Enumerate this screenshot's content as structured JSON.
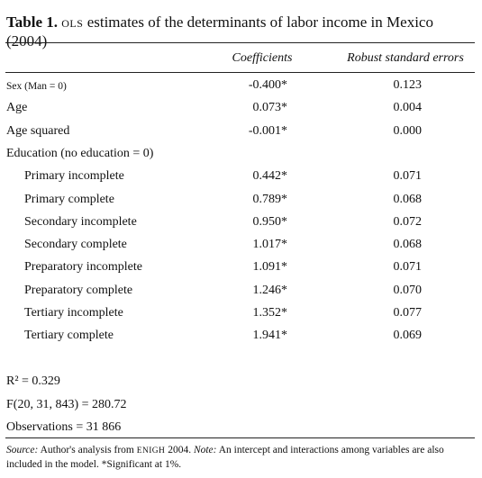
{
  "table": {
    "title": {
      "label": "Table 1.",
      "abbr": "OLS",
      "text": " estimates of the determinants of labor income in Mexico (2004)"
    },
    "header": [
      "Coefficients",
      "Robust standard errors"
    ],
    "rows": [
      {
        "label": "Sex (Man = 0)",
        "coef": "-0.400*",
        "se": "0.123"
      },
      {
        "label": "Age",
        "coef": "0.073*",
        "se": "0.004"
      },
      {
        "label": "Age squared",
        "coef": "-0.001*",
        "se": "0.000"
      },
      {
        "label": "Education (no education = 0)",
        "sub": [
          {
            "label": "Primary incomplete",
            "coef": "0.442*",
            "se": "0.071"
          },
          {
            "label": "Primary complete",
            "coef": "0.789*",
            "se": "0.068"
          },
          {
            "label": "Secondary incomplete",
            "coef": "0.950*",
            "se": "0.072"
          },
          {
            "label": "Secondary complete",
            "coef": "1.017*",
            "se": "0.068"
          },
          {
            "label": "Preparatory incomplete",
            "coef": "1.091*",
            "se": "0.071"
          },
          {
            "label": "Preparatory complete",
            "coef": "1.246*",
            "se": "0.070"
          },
          {
            "label": "Tertiary incomplete",
            "coef": "1.352*",
            "se": "0.077"
          },
          {
            "label": "Tertiary complete",
            "coef": "1.941*",
            "se": "0.069"
          }
        ]
      }
    ],
    "stats": [
      "R² = 0.329",
      "F(20, 31, 843) = 280.72",
      "Observations = 31 866"
    ],
    "note": {
      "source_label": "Source:",
      "source_text": " Author's analysis from ",
      "source_abbr": "ENIGH",
      "source_year": " 2004. ",
      "note_label": "Note:",
      "note_text": " An intercept and interactions among variables are also included in the model. *Significant at 1%."
    }
  }
}
